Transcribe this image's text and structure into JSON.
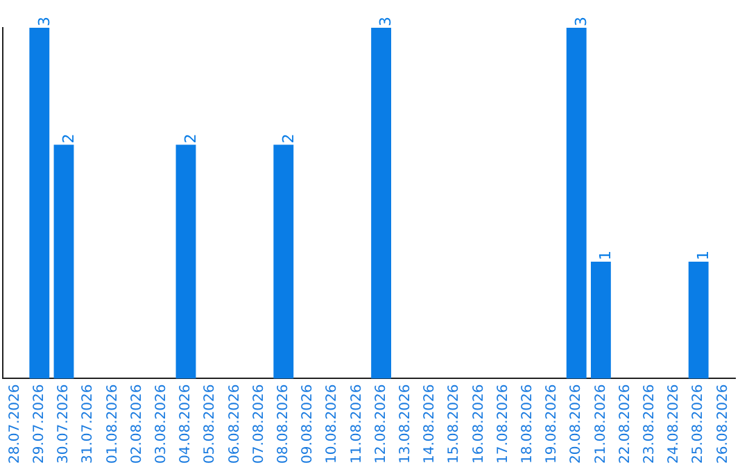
{
  "chart_data": {
    "type": "bar",
    "categories": [
      "28.07.2026",
      "29.07.2026",
      "30.07.2026",
      "31.07.2026",
      "01.08.2026",
      "02.08.2026",
      "03.08.2026",
      "04.08.2026",
      "05.08.2026",
      "06.08.2026",
      "07.08.2026",
      "08.08.2026",
      "09.08.2026",
      "10.08.2026",
      "11.08.2026",
      "12.08.2026",
      "13.08.2026",
      "14.08.2026",
      "15.08.2026",
      "16.08.2026",
      "17.08.2026",
      "18.08.2026",
      "19.08.2026",
      "20.08.2026",
      "21.08.2026",
      "22.08.2026",
      "23.08.2026",
      "24.08.2026",
      "25.08.2026",
      "26.08.2026"
    ],
    "values": [
      null,
      3,
      2,
      null,
      null,
      null,
      null,
      2,
      null,
      null,
      null,
      2,
      null,
      null,
      null,
      3,
      null,
      null,
      null,
      null,
      null,
      null,
      null,
      3,
      1,
      null,
      null,
      null,
      1,
      null
    ],
    "color": "#0a7de6",
    "ylim": [
      0,
      3
    ],
    "tick_labels": "x",
    "data_labels": true,
    "grid": false,
    "legend": false
  }
}
